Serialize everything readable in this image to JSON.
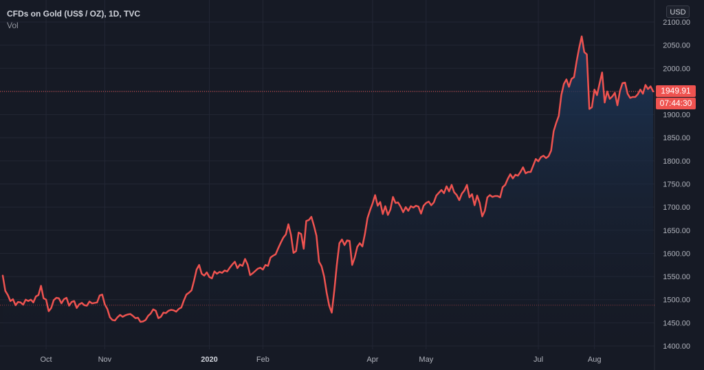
{
  "legend": {
    "title": "CFDs on Gold (US$ / OZ), 1D, TVC",
    "volume_label": "Vol"
  },
  "currency_button": "USD",
  "last_price": {
    "value": "1949.91",
    "countdown": "07:44:30"
  },
  "colors": {
    "background": "#161a25",
    "line": "#ef5350",
    "area_top": "#1e3a5f",
    "grid": "#232735",
    "axis_text": "#b2b5be",
    "price_line": "#ef5350"
  },
  "chart_data": {
    "type": "area",
    "title": "CFDs on Gold (US$ / OZ), 1D, TVC",
    "xlabel": "",
    "ylabel": "",
    "ylim": [
      1388,
      2100
    ],
    "y_ticks": [
      "2100.00",
      "2050.00",
      "2000.00",
      "1950.00",
      "1900.00",
      "1850.00",
      "1800.00",
      "1750.00",
      "1700.00",
      "1650.00",
      "1600.00",
      "1550.00",
      "1500.00",
      "1450.00",
      "1400.00"
    ],
    "x_ticks": [
      {
        "label": "Oct",
        "index": 17,
        "bold": false
      },
      {
        "label": "Nov",
        "index": 40,
        "bold": false
      },
      {
        "label": "2020",
        "index": 81,
        "bold": true
      },
      {
        "label": "Feb",
        "index": 102,
        "bold": false
      },
      {
        "label": "Apr",
        "index": 145,
        "bold": false
      },
      {
        "label": "May",
        "index": 166,
        "bold": false
      },
      {
        "label": "Jul",
        "index": 210,
        "bold": false
      },
      {
        "label": "Aug",
        "index": 232,
        "bold": false
      }
    ],
    "reference_lines": {
      "last": 1949.91,
      "start": 1488
    },
    "series": [
      {
        "values": [
          1552,
          1519,
          1510,
          1497,
          1501,
          1488,
          1495,
          1494,
          1489,
          1500,
          1497,
          1500,
          1494,
          1507,
          1510,
          1530,
          1503,
          1500,
          1475,
          1482,
          1499,
          1504,
          1503,
          1492,
          1501,
          1504,
          1487,
          1495,
          1497,
          1482,
          1490,
          1493,
          1488,
          1487,
          1496,
          1492,
          1493,
          1494,
          1509,
          1511,
          1490,
          1480,
          1462,
          1456,
          1455,
          1462,
          1467,
          1463,
          1466,
          1468,
          1469,
          1465,
          1460,
          1461,
          1452,
          1453,
          1456,
          1465,
          1470,
          1479,
          1476,
          1460,
          1463,
          1472,
          1471,
          1476,
          1478,
          1477,
          1474,
          1480,
          1483,
          1498,
          1511,
          1515,
          1520,
          1541,
          1565,
          1575,
          1556,
          1552,
          1559,
          1549,
          1546,
          1561,
          1556,
          1560,
          1558,
          1563,
          1561,
          1569,
          1576,
          1582,
          1568,
          1576,
          1573,
          1588,
          1576,
          1553,
          1557,
          1562,
          1567,
          1569,
          1565,
          1575,
          1573,
          1591,
          1595,
          1598,
          1611,
          1623,
          1634,
          1641,
          1663,
          1640,
          1601,
          1605,
          1645,
          1642,
          1610,
          1670,
          1672,
          1679,
          1660,
          1638,
          1582,
          1572,
          1550,
          1515,
          1487,
          1472,
          1520,
          1576,
          1622,
          1630,
          1618,
          1628,
          1627,
          1575,
          1591,
          1614,
          1622,
          1615,
          1642,
          1676,
          1693,
          1708,
          1726,
          1703,
          1711,
          1685,
          1702,
          1683,
          1695,
          1722,
          1709,
          1710,
          1701,
          1689,
          1700,
          1692,
          1702,
          1699,
          1703,
          1701,
          1686,
          1703,
          1709,
          1712,
          1704,
          1710,
          1725,
          1731,
          1737,
          1730,
          1745,
          1734,
          1748,
          1732,
          1726,
          1715,
          1729,
          1736,
          1748,
          1721,
          1728,
          1704,
          1725,
          1709,
          1680,
          1692,
          1721,
          1726,
          1722,
          1724,
          1724,
          1721,
          1743,
          1748,
          1761,
          1771,
          1762,
          1770,
          1768,
          1776,
          1786,
          1773,
          1776,
          1776,
          1790,
          1804,
          1799,
          1808,
          1811,
          1806,
          1810,
          1822,
          1864,
          1882,
          1897,
          1942,
          1966,
          1976,
          1960,
          1977,
          1981,
          2015,
          2044,
          2069,
          2035,
          2030,
          1912,
          1916,
          1954,
          1942,
          1967,
          1991,
          1926,
          1950,
          1934,
          1939,
          1947,
          1920,
          1951,
          1968,
          1969,
          1945,
          1936,
          1938,
          1938,
          1944,
          1954,
          1945,
          1964,
          1955,
          1961,
          1949.91
        ]
      }
    ]
  }
}
